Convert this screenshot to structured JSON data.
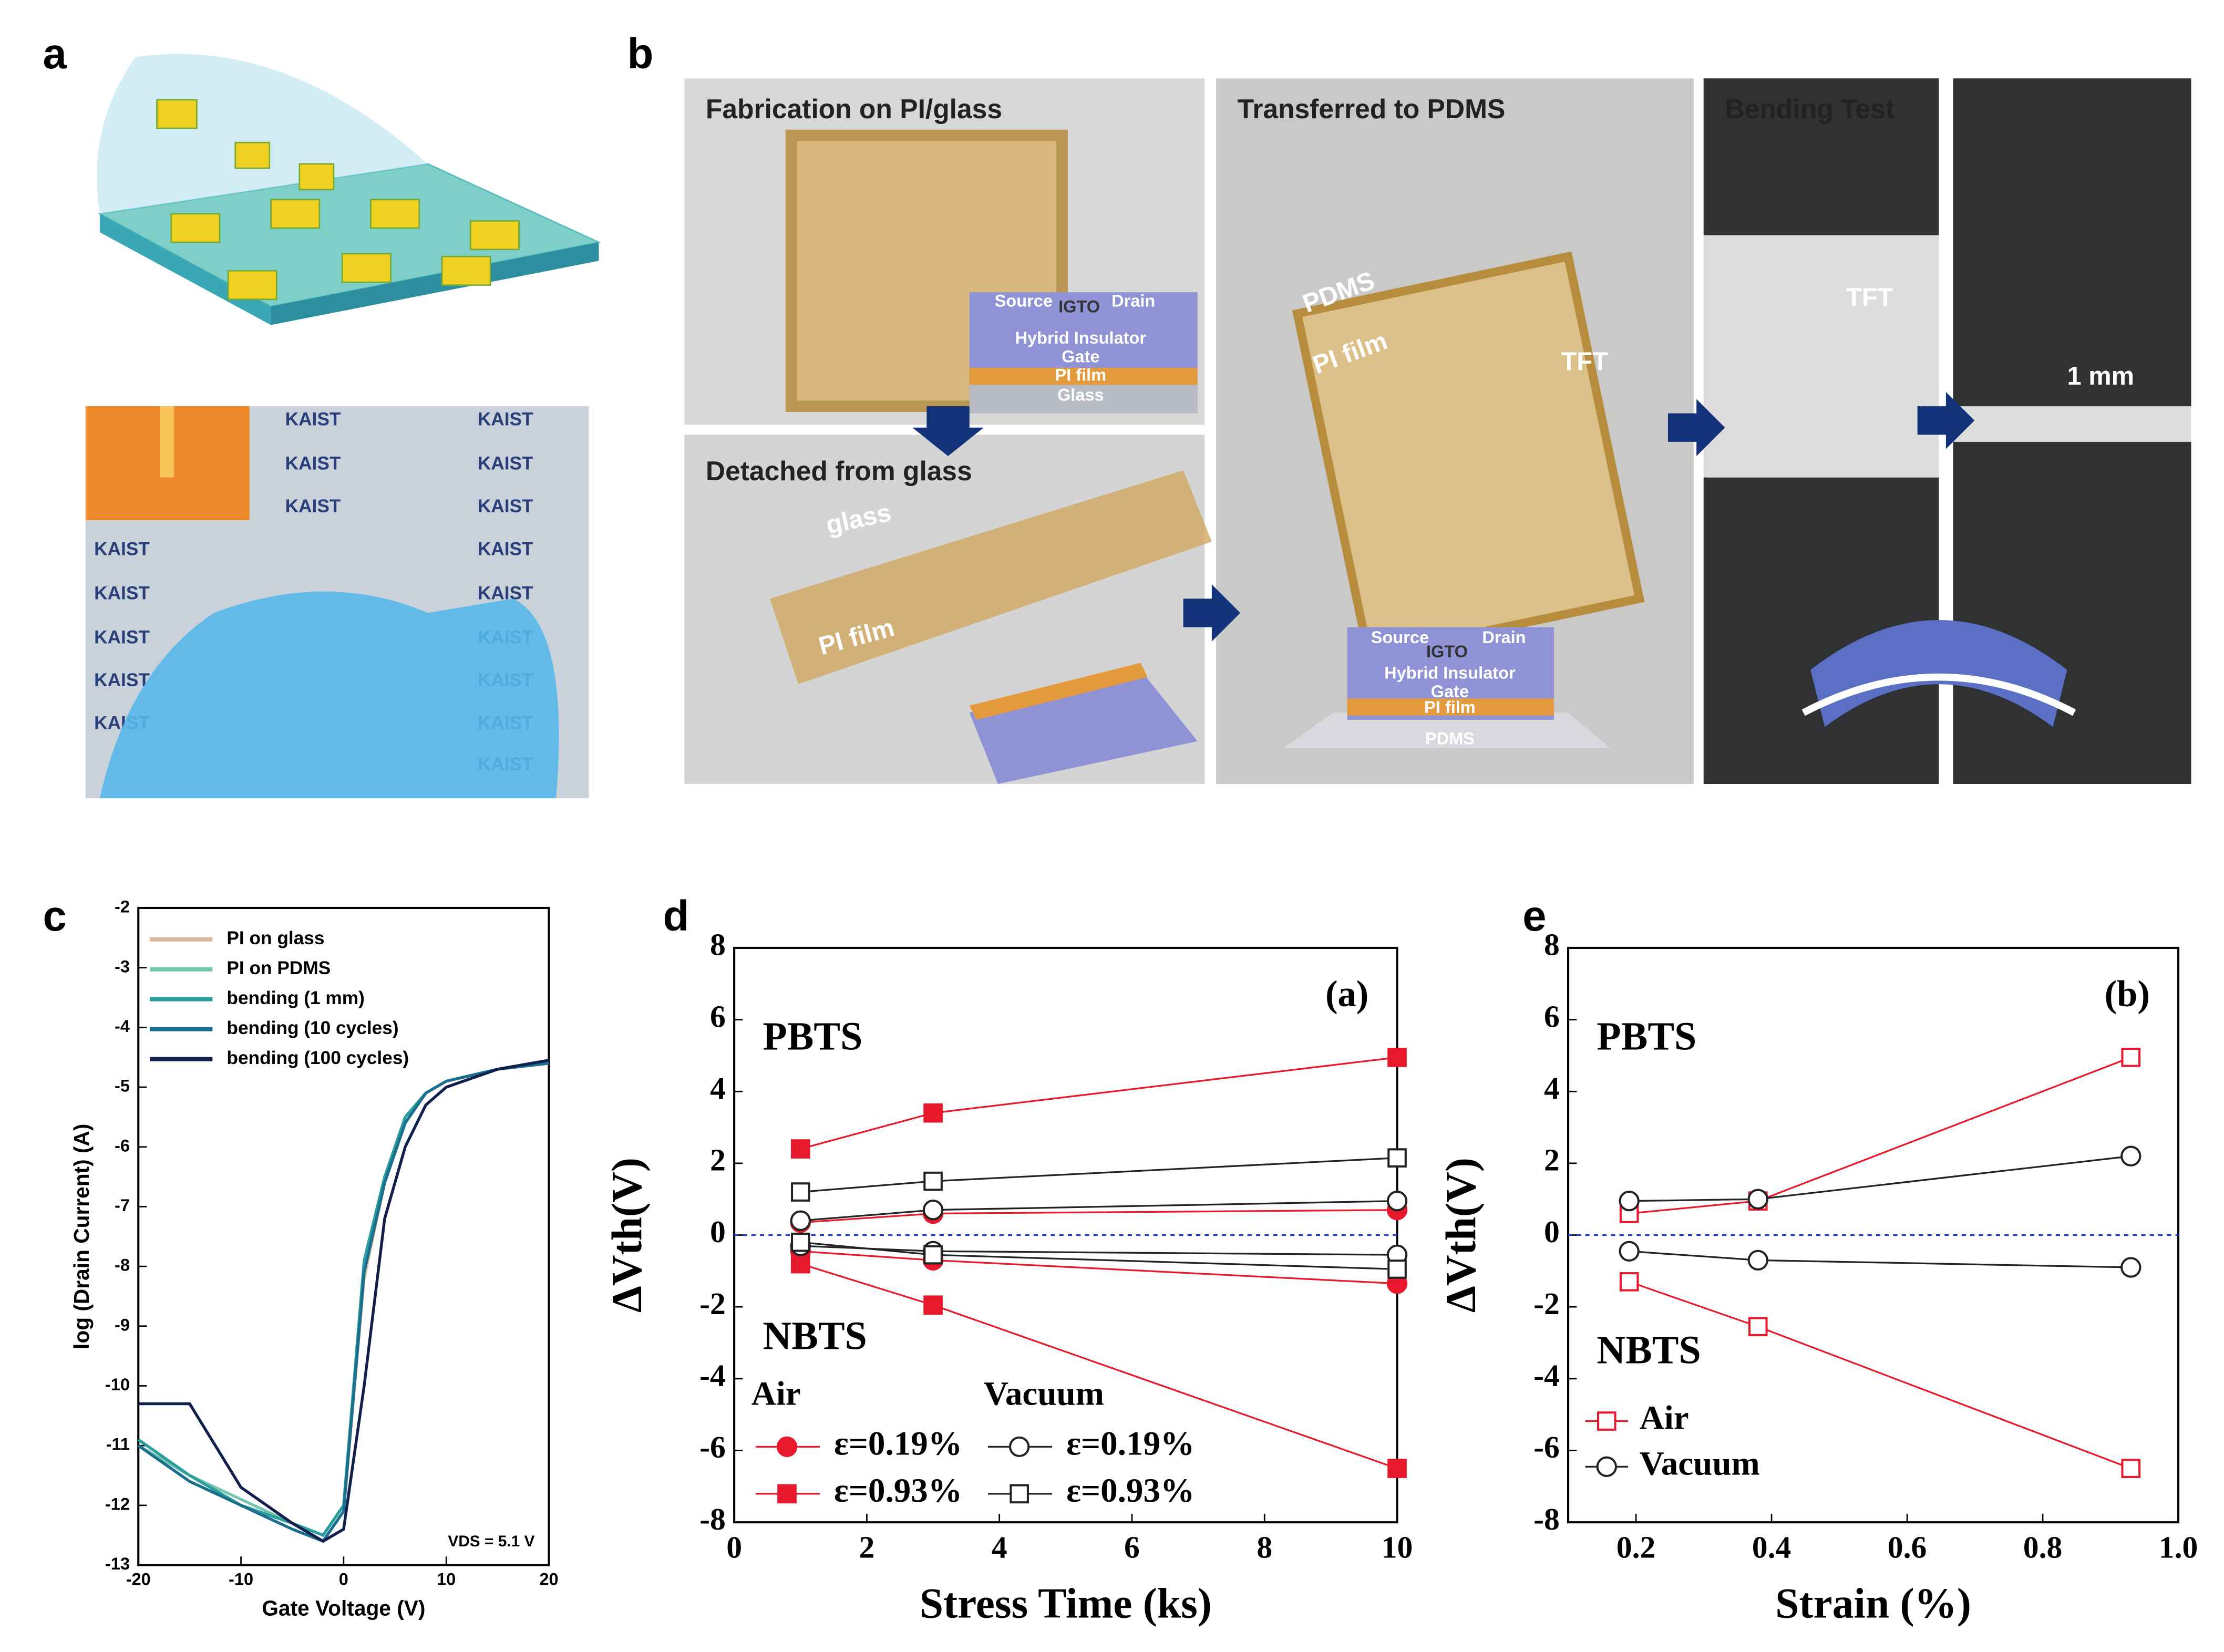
{
  "panel_labels": [
    "a",
    "b",
    "c",
    "d",
    "e"
  ],
  "panels": {
    "a": {
      "logo": "KAIST"
    },
    "b": {
      "fab_title": "Fabrication on PI/glass",
      "detach_title": "Detached from glass",
      "transfer_title": "Transferred to PDMS",
      "bend_title": "Bending Test",
      "stack1": {
        "source": "Source",
        "igto": "IGTO",
        "drain": "Drain",
        "insulator": "Hybrid Insulator",
        "gate": "Gate",
        "pi": "PI film",
        "substrate": "Glass"
      },
      "glass_label": "glass",
      "pi_label": "PI film",
      "pdms_label": "PDMS",
      "pi_label2": "PI film",
      "tft_label": "TFT",
      "tft_label2": "TFT",
      "gap_label": "1 mm",
      "stack2": {
        "source": "Source",
        "igto": "IGTO",
        "drain": "Drain",
        "insulator": "Hybrid Insulator",
        "gate": "Gate",
        "pi": "PI film",
        "substrate": "PDMS"
      }
    }
  },
  "chart_data": [
    {
      "type": "line",
      "x_label": "Gate Voltage (V)",
      "y_label": "log (Drain Current) (A)",
      "annotation": "VDS = 5.1 V",
      "x": [
        -20,
        -15,
        -10,
        -5,
        -2,
        0,
        2,
        4,
        6,
        8,
        10,
        15,
        20
      ],
      "xlim": [
        -20,
        20
      ],
      "xticks": [
        -20,
        -10,
        0,
        10,
        20
      ],
      "ylim": [
        -13,
        -2
      ],
      "yticks": [
        -13,
        -12,
        -11,
        -10,
        -9,
        -8,
        -7,
        -6,
        -5,
        -4,
        -3,
        -2
      ],
      "series": [
        {
          "name": "PI on glass",
          "color": "#d9b99b",
          "values": [
            -11,
            -11.6,
            -12,
            -12.4,
            -12.6,
            -12.1,
            -8.2,
            -6.6,
            -5.6,
            -5.1,
            -4.9,
            -4.7,
            -4.6
          ]
        },
        {
          "name": "PI on PDMS",
          "color": "#74c7ad",
          "values": [
            -11,
            -11.5,
            -11.9,
            -12.3,
            -12.5,
            -12,
            -8,
            -6.5,
            -5.6,
            -5.1,
            -4.9,
            -4.7,
            -4.6
          ]
        },
        {
          "name": "bending (1 mm)",
          "color": "#2a9d9d",
          "values": [
            -10.9,
            -11.5,
            -12,
            -12.3,
            -12.5,
            -12,
            -7.9,
            -6.5,
            -5.5,
            -5.1,
            -4.9,
            -4.7,
            -4.55
          ]
        },
        {
          "name": "bending (10 cycles)",
          "color": "#1b6f8e",
          "values": [
            -11,
            -11.6,
            -12,
            -12.4,
            -12.6,
            -12.1,
            -8.1,
            -6.6,
            -5.6,
            -5.1,
            -4.9,
            -4.7,
            -4.6
          ]
        },
        {
          "name": "bending (100 cycles)",
          "color": "#101f4c",
          "values": [
            -10.3,
            -10.3,
            -11.7,
            -12.3,
            -12.6,
            -12.4,
            -10,
            -7.2,
            -6,
            -5.3,
            -5,
            -4.7,
            -4.55
          ]
        }
      ]
    },
    {
      "type": "line",
      "x_label": "Stress Time (ks)",
      "y_label": "ΔVth(V)",
      "annotation": "(a)",
      "pbts_label": "PBTS",
      "nbts_label": "NBTS",
      "groups": [
        "Air",
        "Vacuum"
      ],
      "zero_line": true,
      "x": [
        1,
        3,
        10
      ],
      "xlim": [
        0,
        10
      ],
      "xticks": [
        0,
        2,
        4,
        6,
        8,
        10
      ],
      "ylim": [
        -8,
        8
      ],
      "yticks": [
        -8,
        -6,
        -4,
        -2,
        0,
        2,
        4,
        6,
        8
      ],
      "series": [
        {
          "name": "ε=0.19%",
          "group": "Air",
          "color": "#e8192c",
          "marker": "circle",
          "filled": true,
          "pbts": [
            0.35,
            0.6,
            0.7
          ],
          "nbts": [
            -0.45,
            -0.7,
            -1.35
          ]
        },
        {
          "name": "ε=0.93%",
          "group": "Air",
          "color": "#e8192c",
          "marker": "square",
          "filled": true,
          "pbts": [
            2.4,
            3.4,
            4.95
          ],
          "nbts": [
            -0.8,
            -1.95,
            -6.5
          ]
        },
        {
          "name": "ε=0.19%",
          "group": "Vacuum",
          "color": "#222222",
          "marker": "circle",
          "filled": false,
          "pbts": [
            0.4,
            0.7,
            0.95
          ],
          "nbts": [
            -0.3,
            -0.45,
            -0.55
          ]
        },
        {
          "name": "ε=0.93%",
          "group": "Vacuum",
          "color": "#222222",
          "marker": "square",
          "filled": false,
          "pbts": [
            1.2,
            1.5,
            2.15
          ],
          "nbts": [
            -0.2,
            -0.55,
            -0.95
          ]
        }
      ]
    },
    {
      "type": "line",
      "x_label": "Strain (%)",
      "y_label": "ΔVth(V)",
      "annotation": "(b)",
      "pbts_label": "PBTS",
      "nbts_label": "NBTS",
      "zero_line": true,
      "x": [
        0.19,
        0.38,
        0.93
      ],
      "xlim": [
        0.1,
        1
      ],
      "xticks": [
        0.2,
        0.4,
        0.6,
        0.8,
        {
          "value": 1,
          "label": "1.0"
        }
      ],
      "ylim": [
        -8,
        8
      ],
      "yticks": [
        -8,
        -6,
        -4,
        -2,
        0,
        2,
        4,
        6,
        8
      ],
      "series": [
        {
          "name": "Air",
          "color": "#e8192c",
          "marker": "square",
          "filled": false,
          "pbts": [
            0.6,
            0.95,
            4.95
          ],
          "nbts": [
            -1.3,
            -2.55,
            -6.5
          ]
        },
        {
          "name": "Vacuum",
          "color": "#222222",
          "marker": "circle",
          "filled": false,
          "pbts": [
            0.95,
            1.0,
            2.2
          ],
          "nbts": [
            -0.45,
            -0.7,
            -0.9
          ]
        }
      ]
    }
  ]
}
